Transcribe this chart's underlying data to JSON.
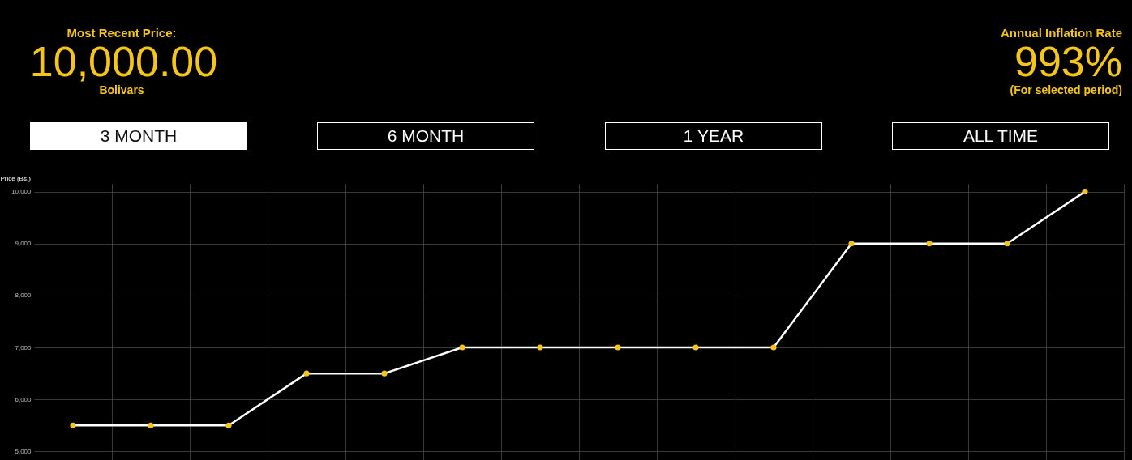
{
  "chart_data": {
    "type": "line",
    "ylabel": "Price (Bs.)",
    "annotations": [
      "Most Recent Price:",
      "10,000.00",
      "Bolivars",
      "Annual Inflation Rate",
      "993%",
      "(For selected period)",
      "3 MONTH",
      "6 MONTH",
      "1 YEAR",
      "ALL TIME"
    ],
    "categories": [
      null,
      null,
      null,
      null,
      null,
      null,
      null,
      null,
      null,
      null,
      null,
      null,
      null,
      null
    ],
    "series": [
      {
        "color": "#ffffff",
        "values": [
          5500,
          5500,
          5500,
          6500,
          6500,
          7000,
          7000,
          7000,
          7000,
          7000,
          9000,
          9000,
          9000,
          10000
        ]
      }
    ],
    "ylim": [
      4600,
      10150
    ],
    "yticks": [
      {
        "value": 5000,
        "label": "5,000"
      },
      {
        "value": 6000,
        "label": "6,000"
      },
      {
        "value": 7000,
        "label": "7,000"
      },
      {
        "value": 8000,
        "label": "8,000"
      },
      {
        "value": 9000,
        "label": "9,000"
      },
      {
        "value": 10000,
        "label": "10,000"
      }
    ],
    "grid": true,
    "marker": "circle",
    "tick_labels": "y"
  }
}
